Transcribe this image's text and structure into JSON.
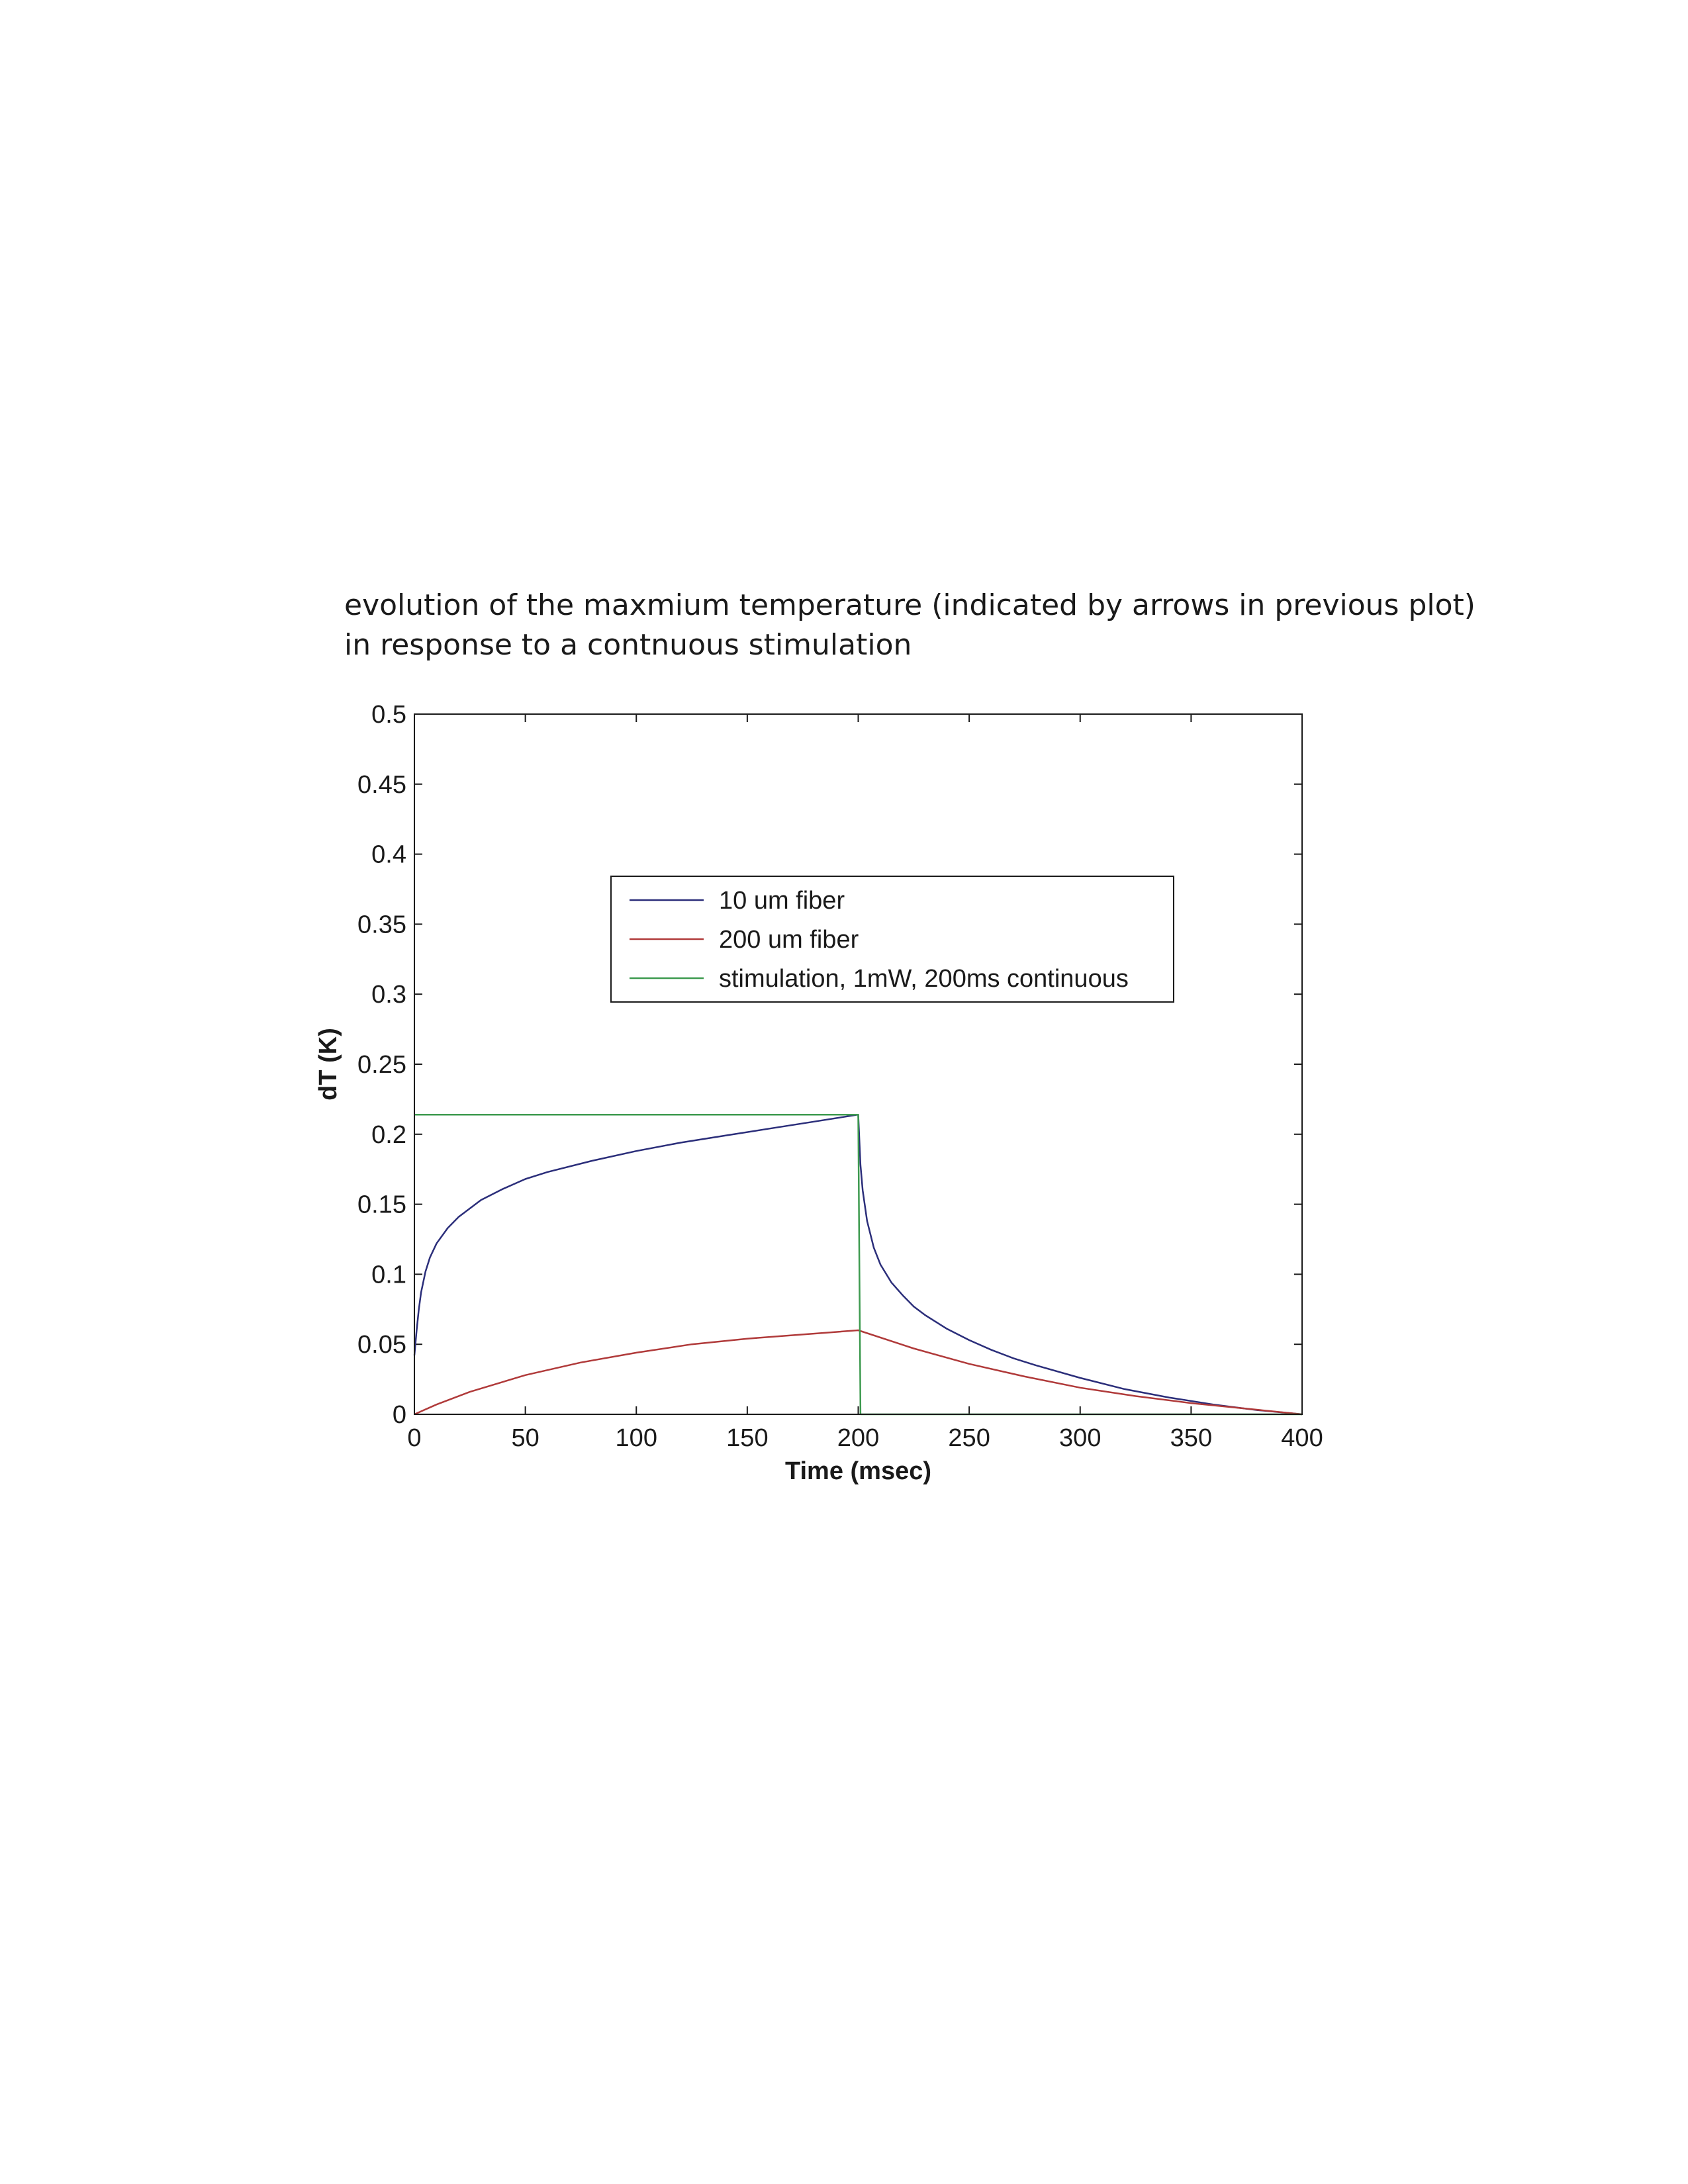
{
  "caption": {
    "line1": "evolution of the maxmium temperature (indicated by arrows in previous plot)",
    "line2": "in response to a contnuous stimulation"
  },
  "chart_data": {
    "type": "line",
    "xlabel": "Time (msec)",
    "ylabel": "dT (K)",
    "xlim": [
      0,
      400
    ],
    "ylim": [
      0,
      0.5
    ],
    "xticks": [
      "0",
      "50",
      "100",
      "150",
      "200",
      "250",
      "300",
      "350",
      "400"
    ],
    "yticks": [
      "0",
      "0.05",
      "0.1",
      "0.15",
      "0.2",
      "0.25",
      "0.3",
      "0.35",
      "0.4",
      "0.45",
      "0.5"
    ],
    "grid": false,
    "legend_position": "upper-center",
    "series": [
      {
        "name": "10 um fiber",
        "color": "#2b2e7a",
        "x": [
          0,
          1,
          2,
          3,
          5,
          7,
          10,
          15,
          20,
          30,
          40,
          50,
          60,
          80,
          100,
          120,
          140,
          160,
          180,
          200,
          201,
          202,
          204,
          207,
          210,
          215,
          220,
          225,
          230,
          240,
          250,
          260,
          270,
          280,
          300,
          320,
          340,
          360,
          380,
          400
        ],
        "y": [
          0.042,
          0.06,
          0.075,
          0.087,
          0.102,
          0.112,
          0.122,
          0.133,
          0.141,
          0.153,
          0.161,
          0.168,
          0.173,
          0.181,
          0.188,
          0.194,
          0.199,
          0.204,
          0.209,
          0.214,
          0.178,
          0.16,
          0.138,
          0.119,
          0.107,
          0.094,
          0.085,
          0.077,
          0.071,
          0.061,
          0.053,
          0.046,
          0.04,
          0.035,
          0.026,
          0.018,
          0.012,
          0.007,
          0.003,
          0.0
        ]
      },
      {
        "name": "200 um fiber",
        "color": "#b03a3a",
        "x": [
          0,
          10,
          25,
          50,
          75,
          100,
          125,
          150,
          175,
          200,
          225,
          250,
          275,
          300,
          325,
          350,
          375,
          400
        ],
        "y": [
          0.0,
          0.007,
          0.016,
          0.028,
          0.037,
          0.044,
          0.05,
          0.054,
          0.057,
          0.06,
          0.047,
          0.036,
          0.027,
          0.019,
          0.013,
          0.008,
          0.004,
          0.0
        ]
      },
      {
        "name": "stimulation, 1mW, 200ms continuous",
        "color": "#3d9a4f",
        "x": [
          0,
          200,
          201,
          400
        ],
        "y": [
          0.214,
          0.214,
          0.0,
          0.0
        ]
      }
    ]
  }
}
